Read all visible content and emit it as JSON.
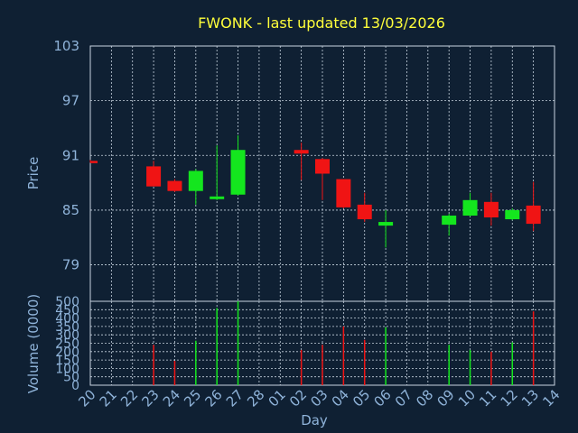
{
  "title": "FWONK - last updated 13/03/2026",
  "chart_data": [
    {
      "type": "candlestick",
      "ylabel": "Price",
      "ylim": [
        75,
        103
      ],
      "yticks": [
        79,
        85,
        91,
        97,
        103
      ],
      "grid": true,
      "x": [
        "20",
        "21",
        "22",
        "23",
        "24",
        "25",
        "26",
        "27",
        "28",
        "01",
        "02",
        "03",
        "04",
        "05",
        "06",
        "07",
        "08",
        "09",
        "10",
        "11",
        "12",
        "13",
        "14"
      ],
      "candles": [
        {
          "x": "20",
          "open": 90.4,
          "high": 90.5,
          "low": 90.2,
          "close": 90.2
        },
        {
          "x": "23",
          "open": 89.8,
          "high": 90.4,
          "low": 87.6,
          "close": 87.6
        },
        {
          "x": "24",
          "open": 88.2,
          "high": 88.4,
          "low": 87.0,
          "close": 87.1
        },
        {
          "x": "25",
          "open": 87.1,
          "high": 89.5,
          "low": 85.6,
          "close": 89.3
        },
        {
          "x": "26",
          "open": 86.2,
          "high": 92.1,
          "low": 86.1,
          "close": 86.5
        },
        {
          "x": "27",
          "open": 86.7,
          "high": 93.2,
          "low": 86.6,
          "close": 91.6
        },
        {
          "x": "02",
          "open": 91.6,
          "high": 92.4,
          "low": 88.3,
          "close": 91.2
        },
        {
          "x": "03",
          "open": 90.6,
          "high": 90.7,
          "low": 86.1,
          "close": 89.0
        },
        {
          "x": "04",
          "open": 88.4,
          "high": 88.4,
          "low": 85.2,
          "close": 85.3
        },
        {
          "x": "05",
          "open": 85.6,
          "high": 86.9,
          "low": 83.7,
          "close": 84.0
        },
        {
          "x": "06",
          "open": 83.3,
          "high": 85.0,
          "low": 80.9,
          "close": 83.7
        },
        {
          "x": "09",
          "open": 83.4,
          "high": 84.6,
          "low": 82.2,
          "close": 84.4
        },
        {
          "x": "10",
          "open": 84.4,
          "high": 86.9,
          "low": 84.3,
          "close": 86.1
        },
        {
          "x": "11",
          "open": 85.9,
          "high": 86.9,
          "low": 83.3,
          "close": 84.2
        },
        {
          "x": "12",
          "open": 84.0,
          "high": 85.2,
          "low": 83.9,
          "close": 85.0
        },
        {
          "x": "13",
          "open": 85.5,
          "high": 88.1,
          "low": 82.7,
          "close": 83.5
        }
      ]
    },
    {
      "type": "bar",
      "ylabel": "Volume (0000)",
      "xlabel": "Day",
      "ylim": [
        0,
        500
      ],
      "yticks": [
        0,
        50,
        100,
        150,
        200,
        250,
        300,
        350,
        400,
        450,
        500
      ],
      "grid": true,
      "x": [
        "20",
        "21",
        "22",
        "23",
        "24",
        "25",
        "26",
        "27",
        "28",
        "01",
        "02",
        "03",
        "04",
        "05",
        "06",
        "07",
        "08",
        "09",
        "10",
        "11",
        "12",
        "13",
        "14"
      ],
      "bars": [
        {
          "x": "23",
          "value": 240,
          "direction": "down"
        },
        {
          "x": "24",
          "value": 145,
          "direction": "down"
        },
        {
          "x": "25",
          "value": 265,
          "direction": "up"
        },
        {
          "x": "26",
          "value": 460,
          "direction": "up"
        },
        {
          "x": "27",
          "value": 500,
          "direction": "up"
        },
        {
          "x": "02",
          "value": 210,
          "direction": "down"
        },
        {
          "x": "03",
          "value": 240,
          "direction": "down"
        },
        {
          "x": "04",
          "value": 350,
          "direction": "down"
        },
        {
          "x": "05",
          "value": 270,
          "direction": "down"
        },
        {
          "x": "06",
          "value": 345,
          "direction": "up"
        },
        {
          "x": "09",
          "value": 240,
          "direction": "up"
        },
        {
          "x": "10",
          "value": 210,
          "direction": "up"
        },
        {
          "x": "11",
          "value": 200,
          "direction": "down"
        },
        {
          "x": "12",
          "value": 255,
          "direction": "up"
        },
        {
          "x": "13",
          "value": 440,
          "direction": "down"
        }
      ]
    }
  ],
  "colors": {
    "background": "#0f2033",
    "title": "#ffff3a",
    "text": "#8fb3d9",
    "grid": "#c8d4e0",
    "up": "#14e61e",
    "down": "#f01414",
    "plot_border": "#c8d4e0"
  }
}
